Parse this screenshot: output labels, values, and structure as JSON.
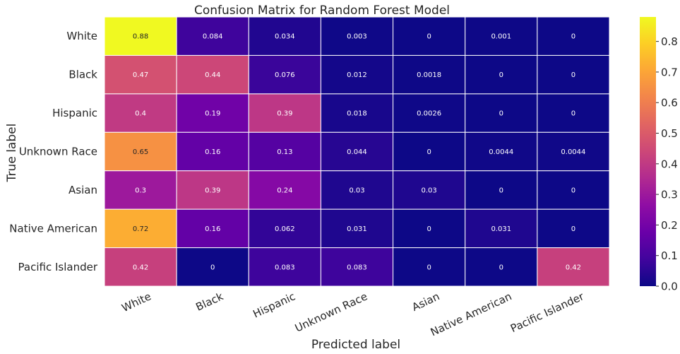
{
  "chart_data": {
    "type": "heatmap",
    "title": "Confusion Matrix for Random Forest Model",
    "xlabel": "Predicted label",
    "ylabel": "True label",
    "x_categories": [
      "White",
      "Black",
      "Hispanic",
      "Unknown Race",
      "Asian",
      "Native American",
      "Pacific Islander"
    ],
    "y_categories": [
      "White",
      "Black",
      "Hispanic",
      "Unknown Race",
      "Asian",
      "Native American",
      "Pacific Islander"
    ],
    "values": [
      [
        0.88,
        0.084,
        0.034,
        0.003,
        0,
        0.001,
        0
      ],
      [
        0.47,
        0.44,
        0.076,
        0.012,
        0.0018,
        0,
        0
      ],
      [
        0.4,
        0.19,
        0.39,
        0.018,
        0.0026,
        0,
        0
      ],
      [
        0.65,
        0.16,
        0.13,
        0.044,
        0,
        0.0044,
        0.0044
      ],
      [
        0.3,
        0.39,
        0.24,
        0.03,
        0.03,
        0,
        0
      ],
      [
        0.72,
        0.16,
        0.062,
        0.031,
        0,
        0.031,
        0
      ],
      [
        0.42,
        0,
        0.083,
        0.083,
        0,
        0,
        0.42
      ]
    ],
    "colormap": "plasma",
    "color_range": [
      0,
      0.88
    ],
    "colorbar_ticks": [
      "0.0",
      "0.1",
      "0.2",
      "0.3",
      "0.4",
      "0.5",
      "0.6",
      "0.7",
      "0.8"
    ],
    "annotations": true,
    "grid_lines": "white"
  }
}
